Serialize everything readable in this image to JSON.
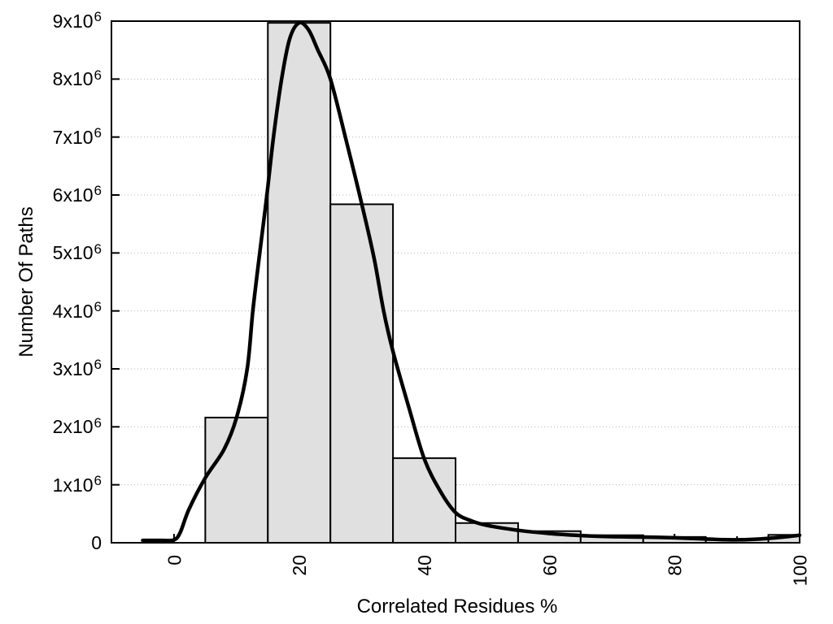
{
  "figure": {
    "background": "#ffffff",
    "frame_color": "#000000",
    "grid_color": "#b4b4b4",
    "text_color": "#000000"
  },
  "chart_data": {
    "type": "bar",
    "subtype": "histogram-with-smoothed-curve-overlay",
    "title": "",
    "xlabel": "Correlated Residues %",
    "ylabel": "Number Of Paths",
    "xlim": [
      -10,
      100
    ],
    "ylim": [
      0,
      9000000
    ],
    "grid": "horizontal-dotted",
    "legend": "none",
    "x_major_ticks": [
      0,
      20,
      40,
      60,
      80,
      100
    ],
    "x_major_tick_labels": [
      "0",
      "20",
      "40",
      "60",
      "80",
      "100"
    ],
    "x_tick_label_rotation_deg": -90,
    "x_minor_ticks": [
      10,
      30,
      50,
      70,
      90
    ],
    "y_ticks": [
      {
        "value": 0,
        "label": "0"
      },
      {
        "value": 1000000,
        "label": "1x10^6"
      },
      {
        "value": 2000000,
        "label": "2x10^6"
      },
      {
        "value": 3000000,
        "label": "3x10^6"
      },
      {
        "value": 4000000,
        "label": "4x10^6"
      },
      {
        "value": 5000000,
        "label": "5x10^6"
      },
      {
        "value": 6000000,
        "label": "6x10^6"
      },
      {
        "value": 7000000,
        "label": "7x10^6"
      },
      {
        "value": 8000000,
        "label": "8x10^6"
      },
      {
        "value": 9000000,
        "label": "9x10^6"
      }
    ],
    "bar_fill": "#e0e0e0",
    "bar_stroke": "#000000",
    "curve_color": "#000000",
    "bars": [
      {
        "x0": 5,
        "x1": 15,
        "count": 2160000
      },
      {
        "x0": 15,
        "x1": 25,
        "count": 8970000
      },
      {
        "x0": 25,
        "x1": 35,
        "count": 5840000
      },
      {
        "x0": 35,
        "x1": 45,
        "count": 1460000
      },
      {
        "x0": 45,
        "x1": 55,
        "count": 340000
      },
      {
        "x0": 55,
        "x1": 65,
        "count": 200000
      },
      {
        "x0": 65,
        "x1": 75,
        "count": 130000
      },
      {
        "x0": 75,
        "x1": 85,
        "count": 100000
      },
      {
        "x0": 85,
        "x1": 95,
        "count": 63000
      },
      {
        "x0": 95,
        "x1": 105,
        "count": 136000
      }
    ],
    "curve": {
      "name": "smoothed-frequency-curve",
      "points": [
        [
          -5,
          40000
        ],
        [
          -2,
          40000
        ],
        [
          0,
          50000
        ],
        [
          1,
          180000
        ],
        [
          2.4,
          580000
        ],
        [
          5,
          1120000
        ],
        [
          8,
          1610000
        ],
        [
          10,
          2160000
        ],
        [
          11.7,
          3000000
        ],
        [
          12.6,
          4000000
        ],
        [
          13.7,
          5000000
        ],
        [
          14.85,
          6000000
        ],
        [
          15.9,
          7000000
        ],
        [
          17.2,
          8000000
        ],
        [
          18.5,
          8700000
        ],
        [
          20,
          8970000
        ],
        [
          21.5,
          8850000
        ],
        [
          23,
          8500000
        ],
        [
          25,
          8000000
        ],
        [
          27.5,
          6950000
        ],
        [
          30,
          5850000
        ],
        [
          32,
          4900000
        ],
        [
          33.5,
          4000000
        ],
        [
          35,
          3300000
        ],
        [
          37.5,
          2350000
        ],
        [
          40,
          1450000
        ],
        [
          42.5,
          900000
        ],
        [
          45,
          520000
        ],
        [
          47.5,
          380000
        ],
        [
          50,
          300000
        ],
        [
          55,
          215000
        ],
        [
          60,
          160000
        ],
        [
          65,
          125000
        ],
        [
          70,
          105000
        ],
        [
          75,
          98000
        ],
        [
          80,
          85000
        ],
        [
          85,
          65000
        ],
        [
          90,
          50000
        ],
        [
          95,
          75000
        ],
        [
          100,
          130000
        ]
      ]
    }
  }
}
